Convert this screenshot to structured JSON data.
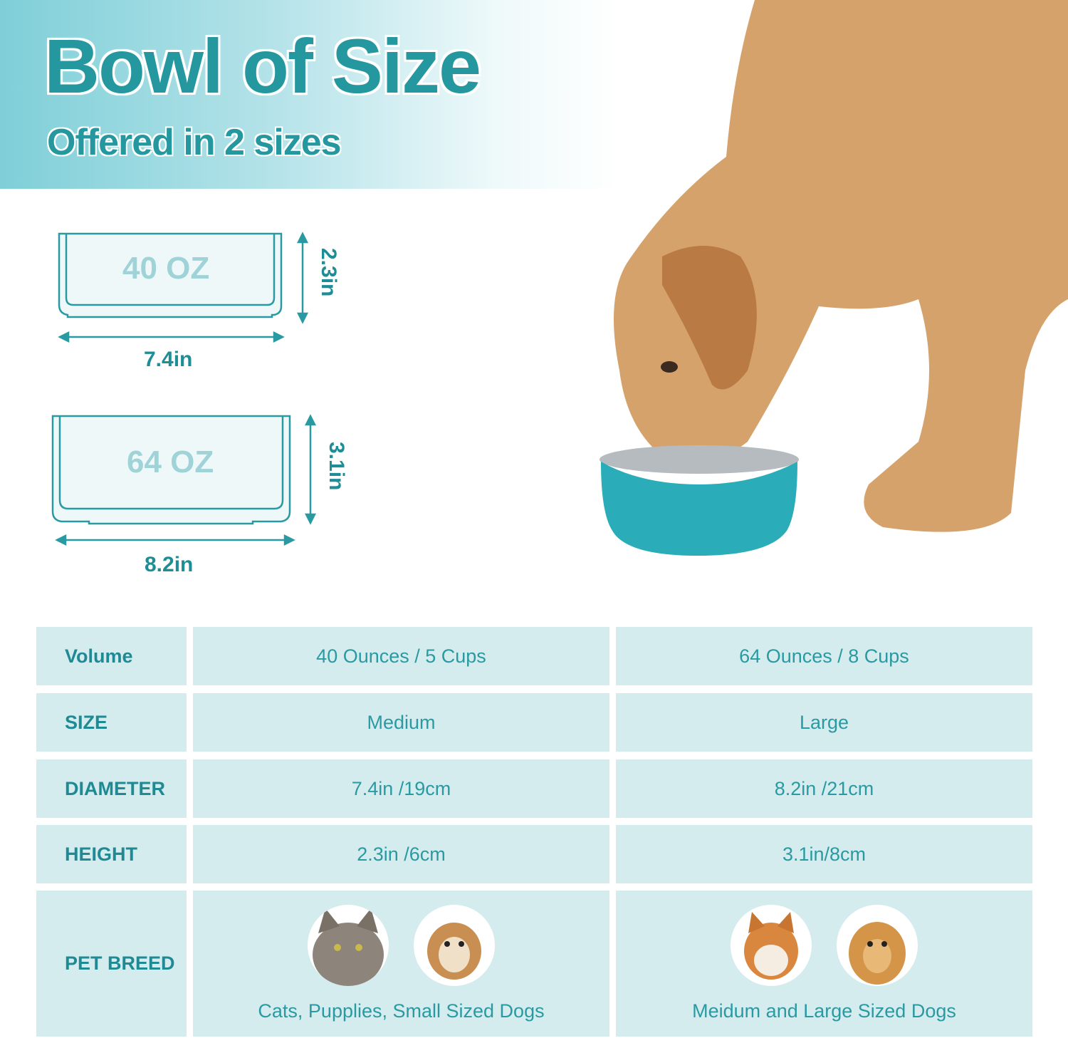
{
  "header": {
    "title": "Bowl of Size",
    "subtitle": "Offered in 2 sizes"
  },
  "diagrams": [
    {
      "volume_label": "40 OZ",
      "height": "2.3in",
      "width": "7.4in"
    },
    {
      "volume_label": "64 OZ",
      "height": "3.1in",
      "width": "8.2in"
    }
  ],
  "colors": {
    "accent": "#24979f",
    "cell_bg": "#d5ecef",
    "bowl": "#2aadb8"
  },
  "table": {
    "rows": [
      {
        "label": "Volume",
        "medium": "40 Ounces / 5 Cups",
        "large": "64 Ounces / 8 Cups"
      },
      {
        "label": "SIZE",
        "medium": "Medium",
        "large": "Large"
      },
      {
        "label": "DIAMETER",
        "medium": "7.4in /19cm",
        "large": "8.2in /21cm"
      },
      {
        "label": "HEIGHT",
        "medium": "2.3in /6cm",
        "large": "3.1in/8cm"
      },
      {
        "label": "PET BREED",
        "medium": "Cats, Pupplies, Small Sized Dogs",
        "large": "Meidum and Large Sized Dogs"
      }
    ]
  }
}
